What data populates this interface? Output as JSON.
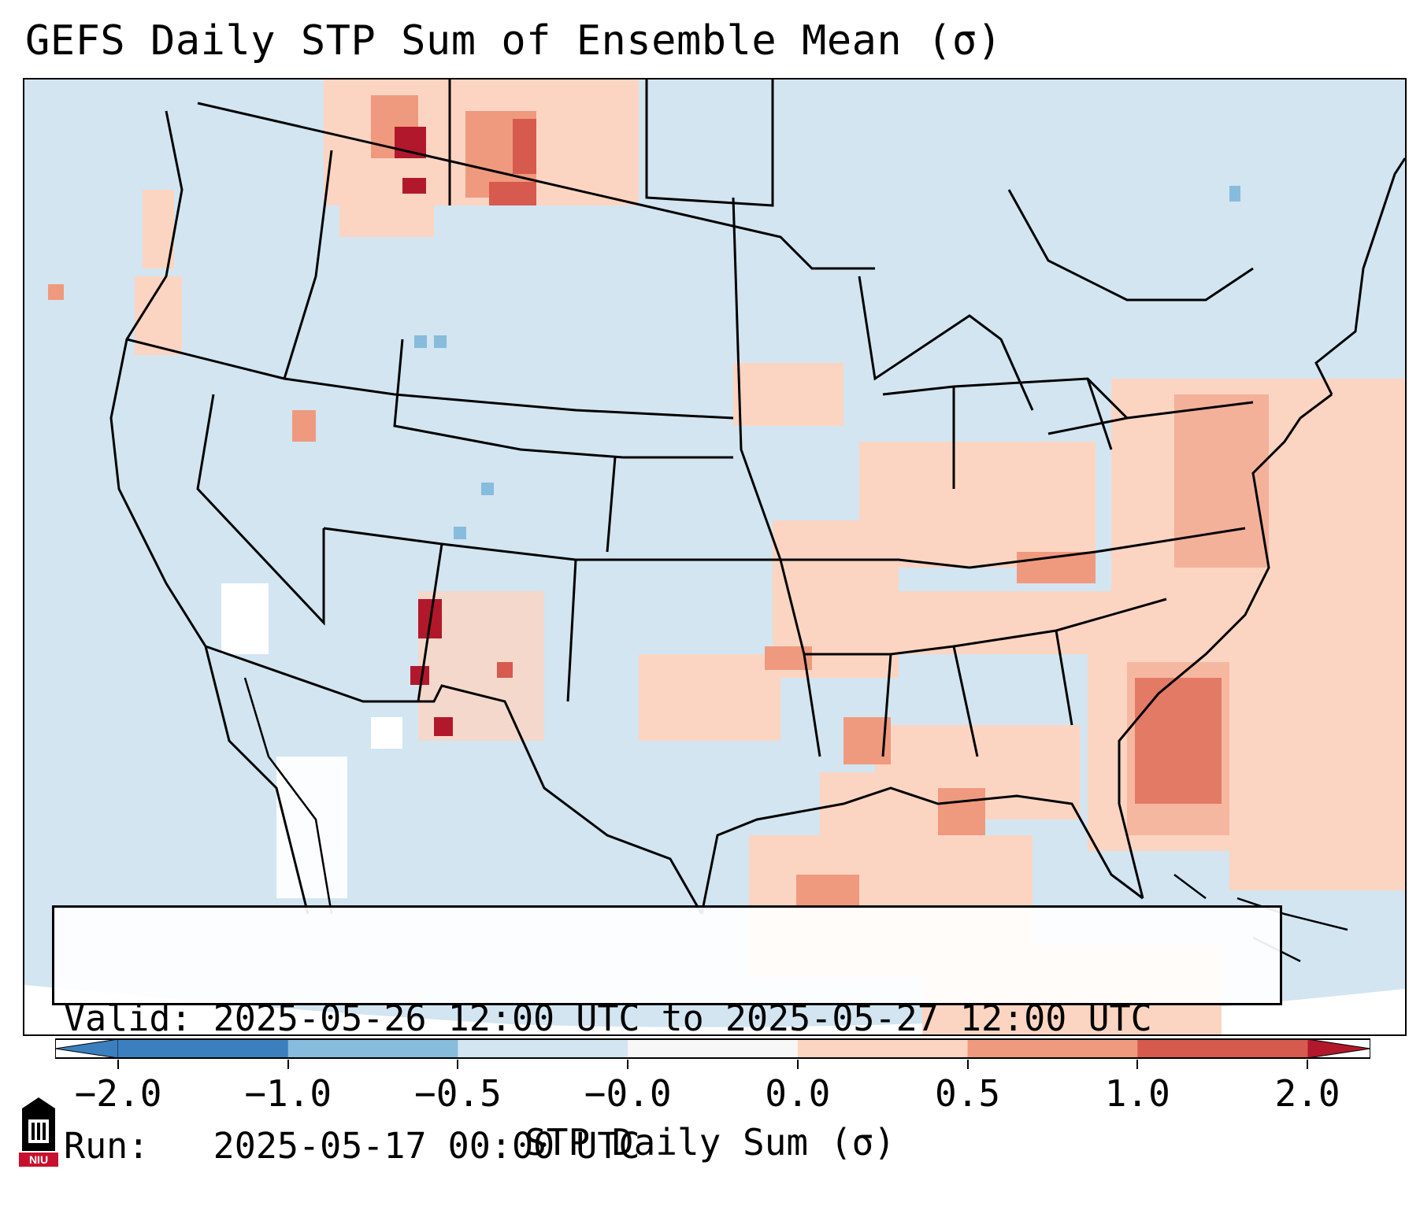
{
  "title": "GEFS Daily STP Sum of Ensemble Mean (σ)",
  "info": {
    "valid_label": "Valid:",
    "valid_value": "2025-05-26 12:00 UTC to 2025-05-27 12:00 UTC",
    "run_label": "Run:",
    "run_value": "2025-05-17 00:00 UTC"
  },
  "colorbar": {
    "label": "STP Daily Sum (σ)",
    "ticks": [
      "−2.0",
      "−1.0",
      "−0.5",
      "−0.0",
      "0.0",
      "0.5",
      "1.0",
      "2.0"
    ],
    "colors": [
      "#3b7fbe",
      "#87bcdc",
      "#d2e5f1",
      "#f7f7f7",
      "#fcd5c2",
      "#ef9a7e",
      "#d65a4e",
      "#b2182b"
    ]
  },
  "map": {
    "background_color": "#d2e5f1",
    "region": "Continental United States",
    "logo_text": "NIU"
  }
}
